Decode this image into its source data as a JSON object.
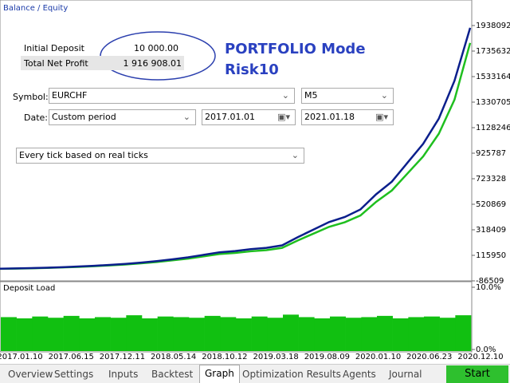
{
  "legend_label": "Balance / Equity",
  "summary": {
    "rows": [
      {
        "label": "Initial Deposit",
        "value": "10 000.00"
      },
      {
        "label": "Total Net Profit",
        "value": "1 916 908.01"
      }
    ]
  },
  "annotation": {
    "line1": "PORTFOLIO Mode",
    "line2": "Risk10"
  },
  "form": {
    "symbol_label": "Symbol:",
    "symbol": "EURCHF",
    "period": "M5",
    "date_label": "Date:",
    "date_mode": "Custom period",
    "date_from": "2017.01.01",
    "date_to": "2021.01.18",
    "model": "Every tick based on real ticks"
  },
  "chart_data": {
    "type": "line",
    "series": [
      {
        "name": "Balance",
        "color": "#0b1f8c",
        "values": [
          10000,
          12000,
          15000,
          18000,
          22000,
          27000,
          33000,
          40000,
          48000,
          58000,
          70000,
          84000,
          100000,
          120000,
          140000,
          150000,
          165000,
          175000,
          195000,
          260000,
          320000,
          380000,
          420000,
          480000,
          600000,
          700000,
          850000,
          1000000,
          1200000,
          1500000,
          1920000
        ]
      },
      {
        "name": "Equity",
        "color": "#1fbf1f",
        "values": [
          9000,
          11000,
          13500,
          16500,
          20000,
          24500,
          30000,
          36000,
          43500,
          52500,
          63000,
          76000,
          90000,
          108000,
          126000,
          135000,
          148000,
          157000,
          175000,
          234000,
          288000,
          342000,
          378000,
          432000,
          540000,
          630000,
          765000,
          900000,
          1080000,
          1350000,
          1800000
        ]
      }
    ],
    "ylim": [
      -86509,
      1938092
    ],
    "yticks": [
      1938092,
      1735632,
      1533164,
      1330705,
      1128246,
      925787,
      723328,
      520869,
      318409,
      115950,
      -86509
    ],
    "xlabels": [
      "2017.01.10",
      "2017.06.15",
      "2017.12.11",
      "2018.05.14",
      "2018.10.12",
      "2019.03.18",
      "2019.08.09",
      "2020.01.10",
      "2020.06.23",
      "2020.12.10"
    ]
  },
  "load_chart": {
    "type": "bar",
    "title": "Deposit Load",
    "color": "#11c011",
    "values": [
      5.2,
      5.0,
      5.3,
      5.1,
      5.4,
      5.0,
      5.2,
      5.1,
      5.5,
      5.0,
      5.3,
      5.2,
      5.1,
      5.4,
      5.2,
      5.0,
      5.3,
      5.1,
      5.6,
      5.2,
      5.0,
      5.3,
      5.1,
      5.2,
      5.4,
      5.0,
      5.2,
      5.3,
      5.1,
      5.5
    ],
    "ylim": [
      0,
      10
    ],
    "yticks": [
      {
        "value": 10,
        "label": "10.0%"
      },
      {
        "value": 0,
        "label": "0.0%"
      }
    ]
  },
  "tabs": [
    "Overview",
    "Settings",
    "Inputs",
    "Backtest",
    "Graph",
    "Optimization Results",
    "Agents",
    "Journal"
  ],
  "active_tab": 4,
  "start_button": "Start"
}
